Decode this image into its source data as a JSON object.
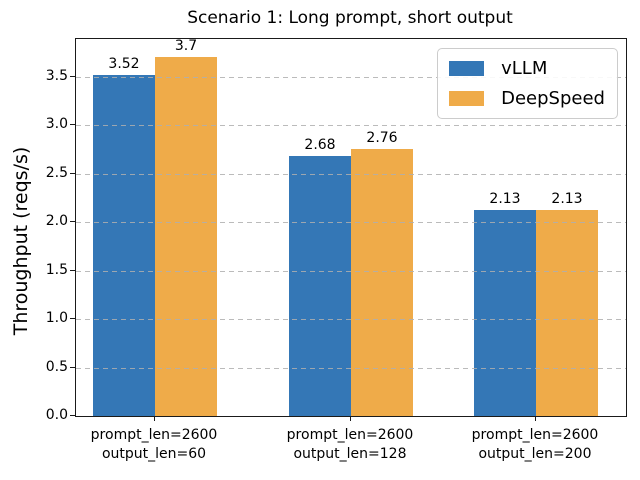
{
  "chart_data": {
    "type": "bar",
    "title": "Scenario 1: Long prompt, short output",
    "xlabel": "",
    "ylabel": "Throughput (reqs/s)",
    "categories": [
      "prompt_len=2600\noutput_len=60",
      "prompt_len=2600\noutput_len=128",
      "prompt_len=2600\noutput_len=200"
    ],
    "series": [
      {
        "name": "vLLM",
        "color": "#3477b6",
        "values": [
          3.52,
          2.68,
          2.13
        ],
        "labels": [
          "3.52",
          "2.68",
          "2.13"
        ]
      },
      {
        "name": "DeepSpeed",
        "color": "#efab49",
        "values": [
          3.7,
          2.76,
          2.13
        ],
        "labels": [
          "3.7",
          "2.76",
          "2.13"
        ]
      }
    ],
    "ylim": [
      0,
      3.89
    ],
    "yticks": [
      0.0,
      0.5,
      1.0,
      1.5,
      2.0,
      2.5,
      3.0,
      3.5
    ],
    "ytick_labels": [
      "0.0",
      "0.5",
      "1.0",
      "1.5",
      "2.0",
      "2.5",
      "3.0",
      "3.5"
    ],
    "grid": "horizontal-dashed",
    "grid_color": "#afafaf",
    "legend_position": "upper right",
    "bar_label_color": "#000000"
  }
}
